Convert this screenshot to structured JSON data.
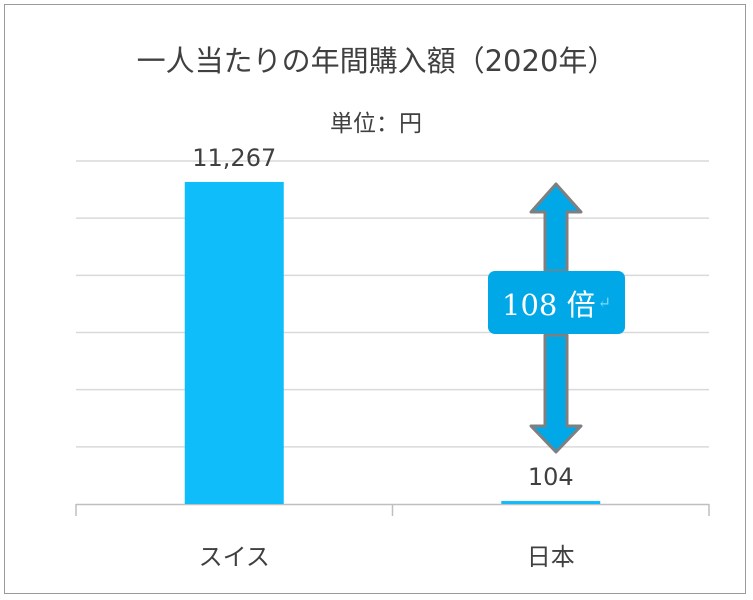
{
  "chart_data": {
    "type": "bar",
    "title": "一人当たりの年間購入額（2020年）",
    "unit_label": "単位：円",
    "categories": [
      "スイス",
      "日本"
    ],
    "values": [
      11267,
      104
    ],
    "value_labels": [
      "11,267",
      "104"
    ],
    "ylim": [
      0,
      12000
    ],
    "y_gridlines": [
      0,
      2000,
      4000,
      6000,
      8000,
      10000,
      12000
    ],
    "grid": true,
    "legend": "none",
    "bar_color": "#0fbdfb",
    "annotation": {
      "text": "108 倍",
      "mark": "↵",
      "arrow_color": "#00a8e8",
      "arrow_outline": "#7f7f7f"
    }
  }
}
